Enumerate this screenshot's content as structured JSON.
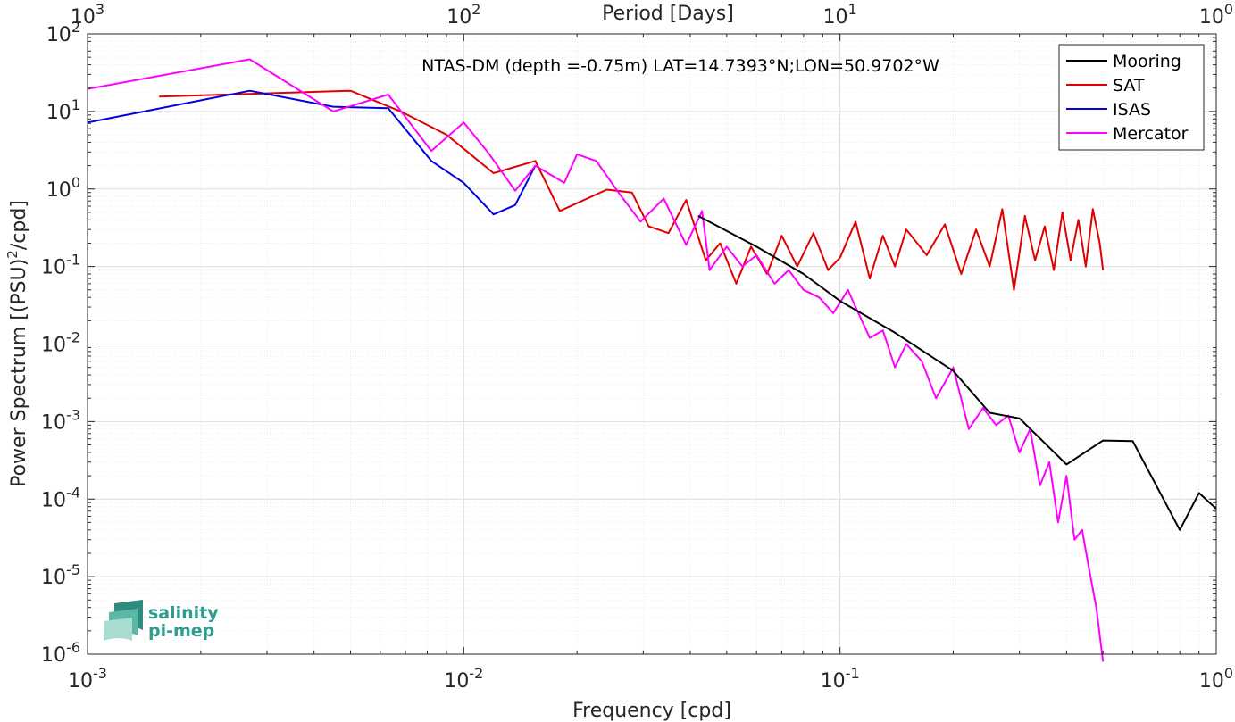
{
  "chart_data": {
    "type": "line",
    "title": "NTAS-DM (depth =-0.75m) LAT=14.7393°N;LON=50.9702°W",
    "xlabel": "Frequency [cpd]",
    "ylabel": "Power Spectrum [(PSU)²/cpd]",
    "top_xlabel": "Period [Days]",
    "xscale": "log",
    "yscale": "log",
    "xlim": [
      0.001,
      1
    ],
    "ylim": [
      1e-06,
      100
    ],
    "grid": true,
    "legend_position": "top-right",
    "x_ticks": [
      {
        "value": 0.001,
        "base": "10",
        "exp": "-3"
      },
      {
        "value": 0.01,
        "base": "10",
        "exp": "-2"
      },
      {
        "value": 0.1,
        "base": "10",
        "exp": "-1"
      },
      {
        "value": 1,
        "base": "10",
        "exp": "0"
      }
    ],
    "top_ticks": [
      {
        "value": 0.001,
        "base": "10",
        "exp": "3"
      },
      {
        "value": 0.01,
        "base": "10",
        "exp": "2"
      },
      {
        "value": 0.1,
        "base": "10",
        "exp": "1"
      },
      {
        "value": 1,
        "base": "10",
        "exp": "0"
      }
    ],
    "y_ticks": [
      {
        "value": 100,
        "base": "10",
        "exp": "2"
      },
      {
        "value": 10,
        "base": "10",
        "exp": "1"
      },
      {
        "value": 1,
        "base": "10",
        "exp": "0"
      },
      {
        "value": 0.1,
        "base": "10",
        "exp": "-1"
      },
      {
        "value": 0.01,
        "base": "10",
        "exp": "-2"
      },
      {
        "value": 0.001,
        "base": "10",
        "exp": "-3"
      },
      {
        "value": 0.0001,
        "base": "10",
        "exp": "-4"
      },
      {
        "value": 1e-05,
        "base": "10",
        "exp": "-5"
      },
      {
        "value": 1e-06,
        "base": "10",
        "exp": "-6"
      }
    ],
    "series": [
      {
        "name": "Mooring",
        "color": "#000000",
        "x": [
          0.042,
          0.06,
          0.08,
          0.1,
          0.14,
          0.2,
          0.25,
          0.3,
          0.4,
          0.5,
          0.6,
          0.8,
          0.9,
          1.0
        ],
        "y": [
          0.45,
          0.18,
          0.08,
          0.036,
          0.014,
          0.0045,
          0.0013,
          0.0011,
          0.00028,
          0.00057,
          0.00056,
          4e-05,
          0.00012,
          7.5e-05
        ]
      },
      {
        "name": "SAT",
        "color": "#e00000",
        "x": [
          0.00155,
          0.005,
          0.0068,
          0.009,
          0.012,
          0.0155,
          0.018,
          0.024,
          0.028,
          0.031,
          0.035,
          0.039,
          0.044,
          0.048,
          0.053,
          0.058,
          0.064,
          0.07,
          0.077,
          0.085,
          0.093,
          0.1,
          0.11,
          0.12,
          0.13,
          0.14,
          0.15,
          0.17,
          0.19,
          0.21,
          0.23,
          0.25,
          0.27,
          0.29,
          0.31,
          0.33,
          0.35,
          0.37,
          0.39,
          0.41,
          0.43,
          0.45,
          0.47,
          0.49,
          0.5
        ],
        "y": [
          15.5,
          18.5,
          10,
          5,
          1.6,
          2.3,
          0.52,
          0.98,
          0.9,
          0.33,
          0.27,
          0.72,
          0.12,
          0.2,
          0.06,
          0.18,
          0.08,
          0.25,
          0.1,
          0.27,
          0.09,
          0.13,
          0.38,
          0.07,
          0.25,
          0.1,
          0.3,
          0.14,
          0.35,
          0.08,
          0.3,
          0.1,
          0.55,
          0.05,
          0.45,
          0.12,
          0.33,
          0.09,
          0.5,
          0.12,
          0.4,
          0.1,
          0.55,
          0.2,
          0.09
        ]
      },
      {
        "name": "ISAS",
        "color": "#0000e0",
        "x": [
          0.001,
          0.0027,
          0.0045,
          0.0063,
          0.0082,
          0.01,
          0.012,
          0.0137,
          0.0155
        ],
        "y": [
          7.2,
          18.5,
          11.5,
          11,
          2.3,
          1.2,
          0.47,
          0.62,
          2.0
        ]
      },
      {
        "name": "Mercator",
        "color": "#ff00ff",
        "x": [
          0.001,
          0.0027,
          0.0045,
          0.0063,
          0.0082,
          0.01,
          0.0117,
          0.0137,
          0.0155,
          0.0185,
          0.02,
          0.0225,
          0.026,
          0.0295,
          0.034,
          0.039,
          0.043,
          0.045,
          0.05,
          0.055,
          0.06,
          0.067,
          0.073,
          0.08,
          0.088,
          0.096,
          0.105,
          0.11,
          0.12,
          0.13,
          0.14,
          0.15,
          0.165,
          0.18,
          0.2,
          0.22,
          0.24,
          0.26,
          0.28,
          0.3,
          0.32,
          0.34,
          0.36,
          0.38,
          0.4,
          0.42,
          0.44,
          0.46,
          0.48,
          0.5
        ],
        "y": [
          19.5,
          47,
          10,
          16.5,
          3.1,
          7.2,
          2.8,
          0.95,
          2.0,
          1.2,
          2.8,
          2.3,
          0.85,
          0.38,
          0.75,
          0.19,
          0.52,
          0.09,
          0.18,
          0.1,
          0.14,
          0.06,
          0.09,
          0.05,
          0.04,
          0.025,
          0.05,
          0.03,
          0.012,
          0.015,
          0.005,
          0.01,
          0.006,
          0.002,
          0.005,
          0.0008,
          0.0015,
          0.0009,
          0.0012,
          0.0004,
          0.0008,
          0.00015,
          0.0003,
          5e-05,
          0.0002,
          3e-05,
          4e-05,
          1.2e-05,
          4e-06,
          8e-07
        ]
      }
    ]
  },
  "logo": {
    "line1": "salinity",
    "line2": "pi-mep"
  }
}
